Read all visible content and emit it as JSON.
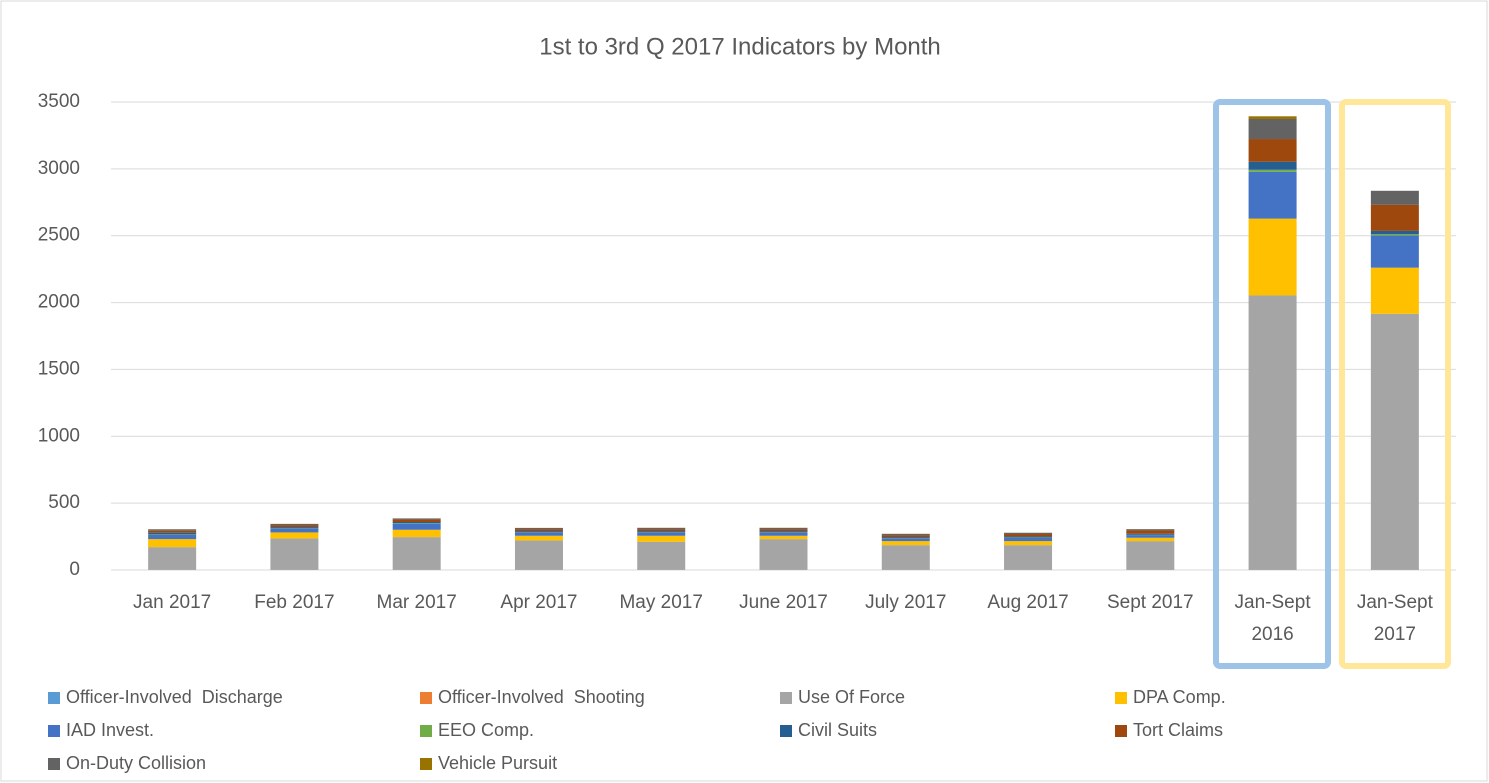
{
  "chart_data": {
    "type": "bar",
    "stacked": true,
    "title": "1st to 3rd Q 2017 Indicators by Month",
    "categories": [
      "Jan 2017",
      "Feb 2017",
      "Mar 2017",
      "Apr 2017",
      "May 2017",
      "June 2017",
      "July 2017",
      "Aug 2017",
      "Sept 2017",
      "Jan-Sept 2016",
      "Jan-Sept 2017"
    ],
    "ylim": [
      0,
      3500
    ],
    "yticks": [
      0,
      500,
      1000,
      1500,
      2000,
      2500,
      3000,
      3500
    ],
    "grid": true,
    "series": [
      {
        "name": "Officer-Involved  Discharge",
        "color": "#5b9bd5",
        "values": [
          1,
          1,
          1,
          1,
          1,
          1,
          1,
          1,
          1,
          2,
          1
        ]
      },
      {
        "name": "Officer-Involved  Shooting",
        "color": "#ed7d31",
        "values": [
          0,
          0,
          0,
          0,
          0,
          0,
          0,
          0,
          0,
          1,
          0
        ]
      },
      {
        "name": "Use Of Force",
        "color": "#a5a5a5",
        "values": [
          170,
          235,
          245,
          220,
          210,
          230,
          185,
          185,
          215,
          2050,
          1915
        ]
      },
      {
        "name": "DPA Comp.",
        "color": "#ffc000",
        "values": [
          60,
          45,
          55,
          35,
          45,
          25,
          30,
          30,
          25,
          575,
          345
        ]
      },
      {
        "name": "IAD Invest.",
        "color": "#4472c4",
        "values": [
          35,
          30,
          45,
          25,
          25,
          25,
          20,
          25,
          20,
          350,
          240
        ]
      },
      {
        "name": "EEO Comp.",
        "color": "#70ad47",
        "values": [
          3,
          2,
          3,
          2,
          2,
          2,
          2,
          2,
          2,
          15,
          10
        ]
      },
      {
        "name": "Civil Suits",
        "color": "#255e91",
        "values": [
          10,
          8,
          10,
          8,
          8,
          8,
          8,
          8,
          8,
          60,
          25
        ]
      },
      {
        "name": "Tort Claims",
        "color": "#9e480e",
        "values": [
          15,
          15,
          18,
          15,
          15,
          15,
          15,
          18,
          25,
          170,
          195
        ]
      },
      {
        "name": "On-Duty Collision",
        "color": "#636363",
        "values": [
          10,
          8,
          8,
          8,
          9,
          9,
          9,
          9,
          9,
          150,
          105
        ]
      },
      {
        "name": "Vehicle Pursuit",
        "color": "#997300",
        "values": [
          1,
          1,
          1,
          1,
          1,
          1,
          1,
          1,
          1,
          20,
          0
        ]
      }
    ]
  }
}
